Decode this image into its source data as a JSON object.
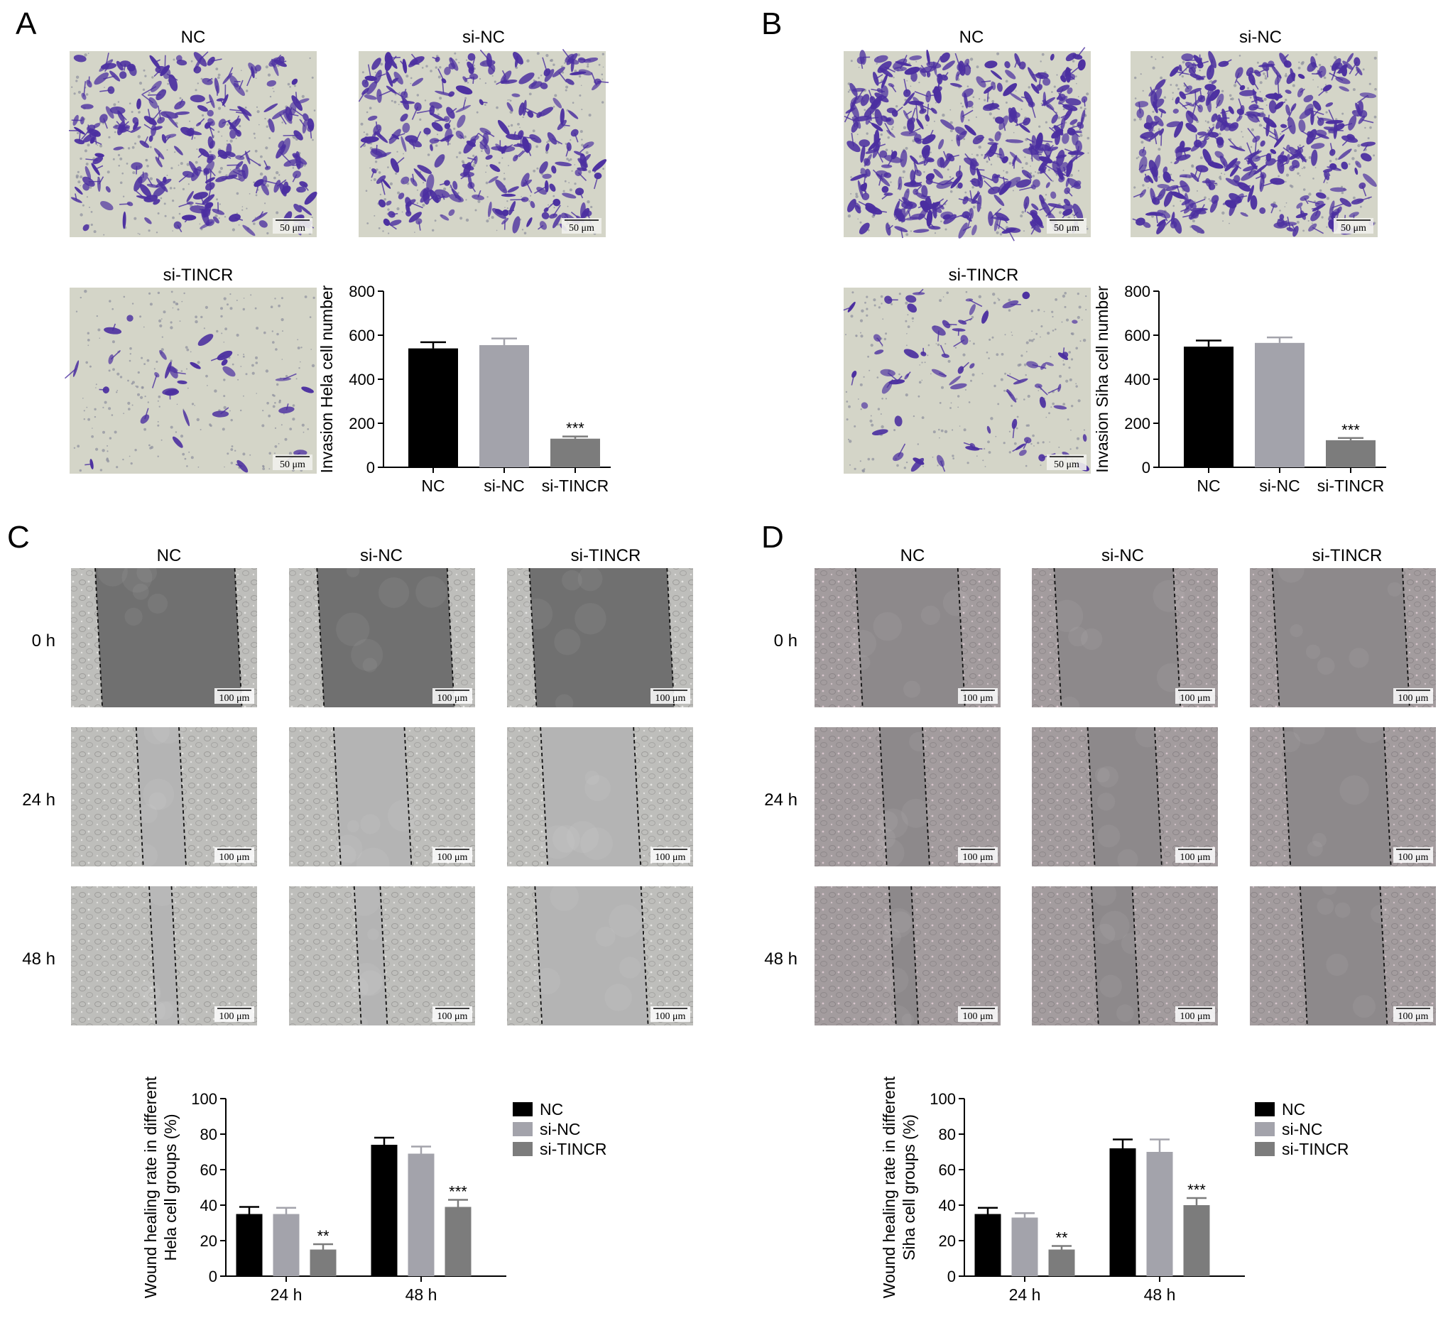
{
  "panels": {
    "A": {
      "letter": "A",
      "images": [
        {
          "label": "NC",
          "scale": "50 μm"
        },
        {
          "label": "si-NC",
          "scale": "50 μm"
        },
        {
          "label": "si-TINCR",
          "scale": "50 μm"
        }
      ]
    },
    "B": {
      "letter": "B",
      "images": [
        {
          "label": "NC",
          "scale": "50 μm"
        },
        {
          "label": "si-NC",
          "scale": "50 μm"
        },
        {
          "label": "si-TINCR",
          "scale": "50 μm"
        }
      ]
    },
    "C": {
      "letter": "C",
      "columns": [
        "NC",
        "si-NC",
        "si-TINCR"
      ],
      "rows": [
        "0 h",
        "24 h",
        "48 h"
      ],
      "scale": "100 μm"
    },
    "D": {
      "letter": "D",
      "columns": [
        "NC",
        "si-NC",
        "si-TINCR"
      ],
      "rows": [
        "0 h",
        "24 h",
        "48 h"
      ],
      "scale": "100 μm"
    }
  },
  "colors": {
    "NC": "#000000",
    "si-NC": "#a3a3ab",
    "si-TINCR": "#7c7c7c",
    "crystal_violet": "#4b2fa0",
    "membrane_bg": "#d4d5c8",
    "wound_bg": "#7c7c7c",
    "cell_layer": "#bdbcbb"
  },
  "chart_data": [
    {
      "id": "A",
      "type": "bar",
      "ylabel": "Invasion Hela cell number",
      "categories": [
        "NC",
        "si-NC",
        "si-TINCR"
      ],
      "values": [
        540,
        555,
        130
      ],
      "errors": [
        28,
        30,
        10
      ],
      "significance": [
        "",
        "",
        "***"
      ],
      "ylim": [
        0,
        800
      ],
      "yticks": [
        0,
        200,
        400,
        600,
        800
      ]
    },
    {
      "id": "B",
      "type": "bar",
      "ylabel": "Invasion Siha cell number",
      "categories": [
        "NC",
        "si-NC",
        "si-TINCR"
      ],
      "values": [
        548,
        565,
        123
      ],
      "errors": [
        28,
        25,
        10
      ],
      "significance": [
        "",
        "",
        "***"
      ],
      "ylim": [
        0,
        800
      ],
      "yticks": [
        0,
        200,
        400,
        600,
        800
      ]
    },
    {
      "id": "C",
      "type": "bar",
      "ylabel_lines": [
        "Wound healing rate in different",
        "Hela cell groups (%)"
      ],
      "categories": [
        "24 h",
        "48 h"
      ],
      "series": [
        {
          "name": "NC",
          "values": [
            35,
            74
          ],
          "errors": [
            4,
            4
          ]
        },
        {
          "name": "si-NC",
          "values": [
            35,
            69
          ],
          "errors": [
            3.5,
            4
          ]
        },
        {
          "name": "si-TINCR",
          "values": [
            15,
            39
          ],
          "errors": [
            3,
            4
          ]
        }
      ],
      "significance": [
        [
          "",
          "",
          "**"
        ],
        [
          "",
          "",
          "***"
        ]
      ],
      "ylim": [
        0,
        100
      ],
      "yticks": [
        0,
        20,
        40,
        60,
        80,
        100
      ],
      "legend": "right"
    },
    {
      "id": "D",
      "type": "bar",
      "ylabel_lines": [
        "Wound healing rate in different",
        "Siha cell groups (%)"
      ],
      "categories": [
        "24 h",
        "48 h"
      ],
      "series": [
        {
          "name": "NC",
          "values": [
            35,
            72
          ],
          "errors": [
            3.5,
            5
          ]
        },
        {
          "name": "si-NC",
          "values": [
            33,
            70
          ],
          "errors": [
            2.5,
            7
          ]
        },
        {
          "name": "si-TINCR",
          "values": [
            15,
            40
          ],
          "errors": [
            2,
            4
          ]
        }
      ],
      "significance": [
        [
          "",
          "",
          "**"
        ],
        [
          "",
          "",
          "***"
        ]
      ],
      "ylim": [
        0,
        100
      ],
      "yticks": [
        0,
        20,
        40,
        60,
        80,
        100
      ],
      "legend": "right"
    }
  ]
}
